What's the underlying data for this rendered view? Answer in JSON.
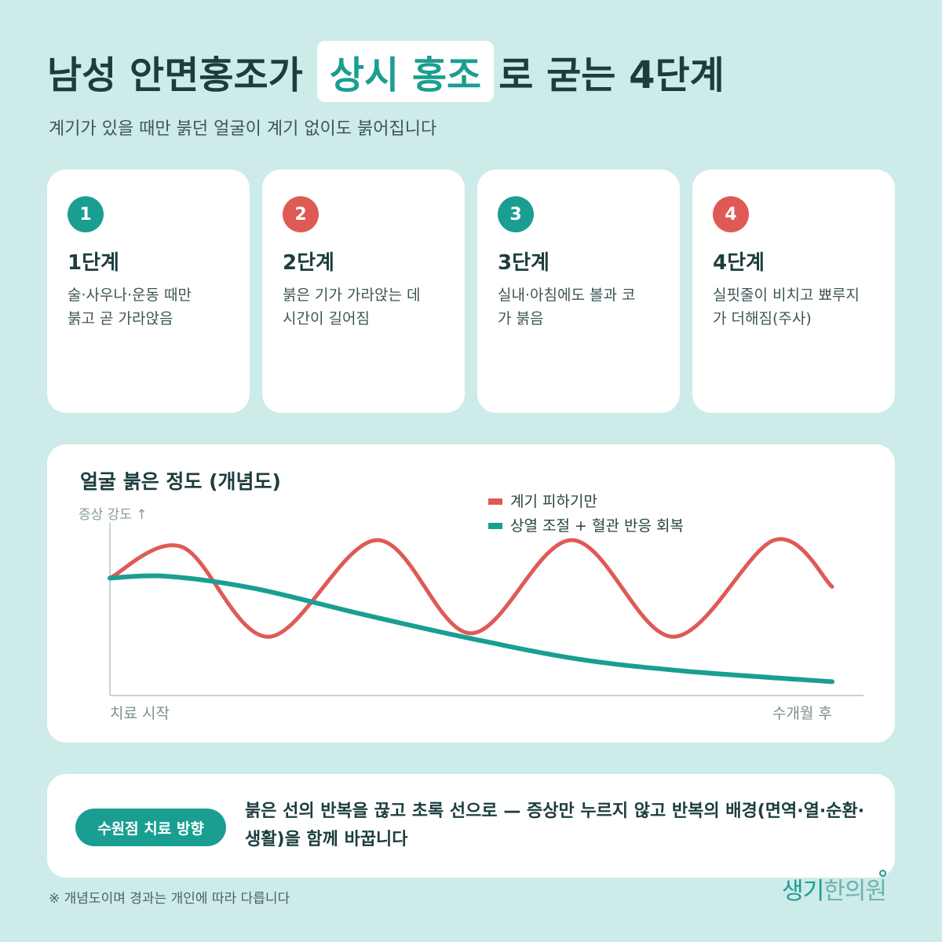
{
  "header": {
    "title_before": "남성 안면홍조가",
    "title_highlight": "상시 홍조",
    "title_after": "로 굳는 4단계",
    "subtitle": "계기가 있을 때만 붉던 얼굴이 계기 없이도 붉어집니다"
  },
  "steps": [
    {
      "number": "1",
      "title": "1단계",
      "desc_line1": "술·사우나·운동 때만",
      "desc_line2": "붉고 곧 가라앉음",
      "color": "#1a9e92"
    },
    {
      "number": "2",
      "title": "2단계",
      "desc_line1": "붉은 기가 가라앉는 데",
      "desc_line2": "시간이 길어짐",
      "color": "#df5a55"
    },
    {
      "number": "3",
      "title": "3단계",
      "desc_line1": "실내·아침에도 볼과 코",
      "desc_line2": "가 붉음",
      "color": "#1a9e92"
    },
    {
      "number": "4",
      "title": "4단계",
      "desc_line1": "실핏줄이 비치고 뾰루지",
      "desc_line2": "가 더해짐(주사)",
      "color": "#df5a55"
    }
  ],
  "chart": {
    "title": "얼굴 붉은 정도 (개념도)",
    "y_label": "증상 강도 ↑",
    "x_start_label": "치료 시작",
    "x_end_label": "수개월 후"
  },
  "chart_data": {
    "type": "line",
    "title": "얼굴 붉은 정도 (개념도)",
    "ylabel": "증상 강도 ↑",
    "x_tick_labels": [
      "치료 시작",
      "수개월 후"
    ],
    "ylim": [
      0,
      1
    ],
    "grid": false,
    "legend_position": "top-right",
    "series": [
      {
        "name": "계기 피하기만",
        "color": "#df5a55",
        "x": [
          0.0,
          0.1,
          0.22,
          0.37,
          0.5,
          0.64,
          0.78,
          0.92,
          1.0
        ],
        "values": [
          0.68,
          0.86,
          0.34,
          0.9,
          0.36,
          0.9,
          0.34,
          0.9,
          0.63
        ]
      },
      {
        "name": "상열 조절 + 혈관 반응 회복",
        "color": "#1a9e92",
        "x": [
          0.0,
          0.08,
          0.2,
          0.35,
          0.5,
          0.65,
          0.8,
          1.0
        ],
        "values": [
          0.68,
          0.69,
          0.62,
          0.47,
          0.33,
          0.21,
          0.14,
          0.08
        ]
      }
    ]
  },
  "callout": {
    "label": "수원점 치료 방향",
    "text": "붉은 선의 반복을 끊고 초록 선으로 — 증상만 누르지 않고 반복의 배경(면역·열·순환·생활)을 함께 바꿉니다"
  },
  "footnote": "※ 개념도이며 경과는 개인에 따라 다릅니다",
  "logo": {
    "part1": "생기",
    "part2": "한의원"
  }
}
